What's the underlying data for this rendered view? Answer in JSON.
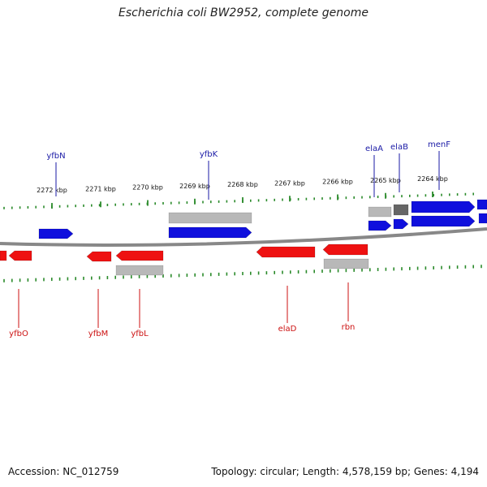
{
  "title": "Escherichia coli BW2952, complete genome",
  "footer": {
    "accession": "Accession: NC_012759",
    "topology": "Topology: circular; Length: 4,578,159 bp; Genes: 4,194"
  },
  "map": {
    "scale_labels": [
      "2272 kbp",
      "2271 kbp",
      "2270 kbp",
      "2269 kbp",
      "2268 kbp",
      "2267 kbp",
      "2266 kbp",
      "2265 kbp",
      "2264 kbp"
    ],
    "genes_forward": [
      "yfbN",
      "yfbK",
      "elaA",
      "elaB",
      "menF"
    ],
    "genes_reverse": [
      "yfbO",
      "yfbM",
      "yfbL",
      "elaD",
      "rbn"
    ],
    "colors": {
      "forward": "#1010dd",
      "reverse": "#ee1111",
      "other": "#b8b8b8",
      "tick": "#2a8a2a",
      "backbone": "#888888"
    }
  }
}
